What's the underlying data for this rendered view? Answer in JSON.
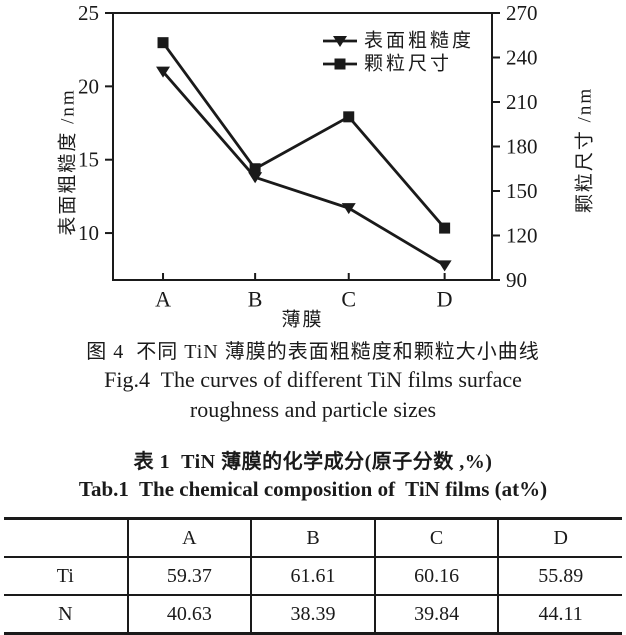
{
  "figure": {
    "caption_zh": "图 4  不同 TiN 薄膜的表面粗糙度和颗粒大小曲线",
    "caption_en_line1": "Fig.4  The curves of different TiN films surface",
    "caption_en_line2": "roughness and particle sizes"
  },
  "chart_data": {
    "type": "line",
    "categories": [
      "A",
      "B",
      "C",
      "D"
    ],
    "xlabel": "薄膜",
    "y_left": {
      "label": "表面粗糙度 /nm",
      "ticks": [
        10,
        15,
        20,
        25
      ],
      "min": 6.8,
      "max": 25
    },
    "y_right": {
      "label": "颗粒尺寸 /nm",
      "ticks": [
        90,
        120,
        150,
        180,
        210,
        240,
        270
      ],
      "min": 90,
      "max": 270
    },
    "series": [
      {
        "name": "表面粗糙度",
        "axis": "left",
        "marker": "triangle-down",
        "values": [
          21.0,
          13.8,
          11.7,
          7.8
        ]
      },
      {
        "name": "颗粒尺寸",
        "axis": "right",
        "marker": "square",
        "values": [
          250,
          165,
          200,
          125
        ]
      }
    ],
    "legend_position": "top-right",
    "grid": false,
    "line_color": "#1a1a1a"
  },
  "table": {
    "title_zh": "表 1  TiN 薄膜的化学成分(原子分数 ,%)",
    "title_en": "Tab.1  The chemical composition of  TiN films (at%)",
    "columns": [
      "",
      "A",
      "B",
      "C",
      "D"
    ],
    "rows": [
      {
        "label": "Ti",
        "values": [
          "59.37",
          "61.61",
          "60.16",
          "55.89"
        ]
      },
      {
        "label": "N",
        "values": [
          "40.63",
          "38.39",
          "39.84",
          "44.11"
        ]
      }
    ]
  }
}
